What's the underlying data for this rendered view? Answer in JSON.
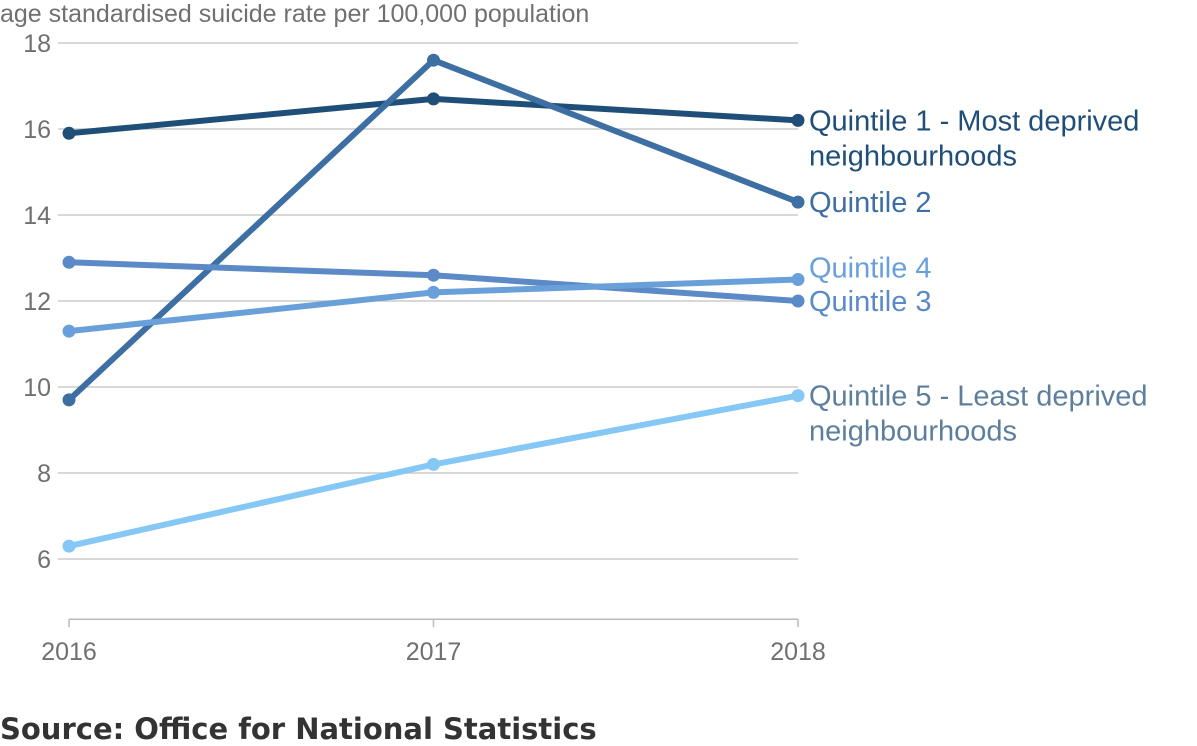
{
  "chart_data": {
    "type": "line",
    "title": "",
    "ylabel": "age standardised suicide rate per 100,000 population",
    "xlabel": "",
    "x": [
      "2016",
      "2017",
      "2018"
    ],
    "ylim": [
      4.6,
      18
    ],
    "yticks": [
      6,
      8,
      10,
      12,
      14,
      16,
      18
    ],
    "grid": true,
    "series": [
      {
        "name_lines": [
          "Quintile 1 - Most deprived",
          "neighbourhoods"
        ],
        "color": "#1f4e79",
        "values": [
          15.9,
          16.7,
          16.2
        ]
      },
      {
        "name_lines": [
          "Quintile 2"
        ],
        "color": "#3d6fa3",
        "values": [
          9.7,
          17.6,
          14.3
        ]
      },
      {
        "name_lines": [
          "Quintile 3"
        ],
        "color": "#5b8ac7",
        "values": [
          12.9,
          12.6,
          12.0
        ]
      },
      {
        "name_lines": [
          "Quintile 4"
        ],
        "color": "#6aa0da",
        "values": [
          11.3,
          12.2,
          12.5
        ]
      },
      {
        "name_lines": [
          "Quintile 5 - Least deprived",
          "neighbourhoods"
        ],
        "color": "#85c8f5",
        "label_color": "#5d7f9c",
        "values": [
          6.3,
          8.2,
          9.8
        ]
      }
    ]
  },
  "source": "Source: Office for National Statistics"
}
